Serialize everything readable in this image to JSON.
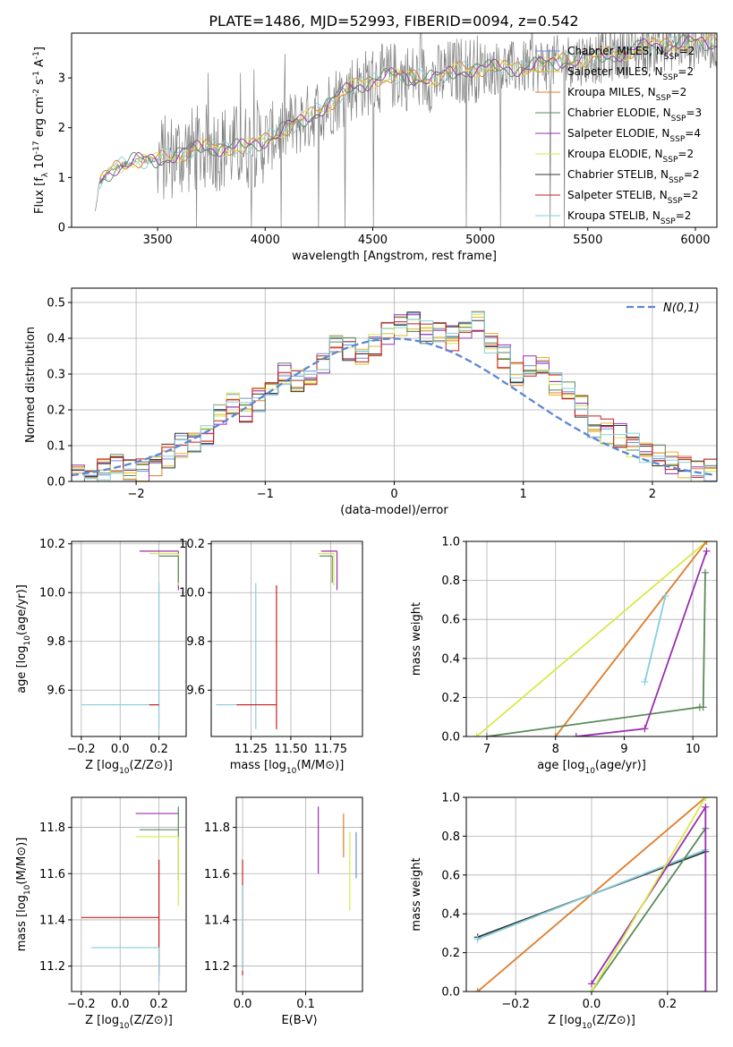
{
  "figure_title": "PLATE=1486, MJD=52993, FIBERID=0094, z=0.542",
  "colors": {
    "Chabrier MILES": "#6b8fdc",
    "Salpeter MILES": "#e0b52d",
    "Kroupa MILES": "#e07b2a",
    "Chabrier ELODIE": "#5a8a5a",
    "Salpeter ELODIE": "#9a2fb0",
    "Kroupa ELODIE": "#d9e84a",
    "Chabrier STELIB": "#333333",
    "Salpeter STELIB": "#c81e1e",
    "Kroupa STELIB": "#86cfdb",
    "gaussian": "#5b86d6",
    "grid": "#b0b0b0"
  },
  "chart_data": [
    {
      "id": "spectrum",
      "type": "line",
      "xlabel": "wavelength [Angstrom, rest frame]",
      "ylabel": "Flux [f_λ 10^-17 erg cm^-2 s^-1 A^-1]",
      "xlim": [
        3100,
        6100
      ],
      "ylim": [
        0,
        3.9
      ],
      "xticks": [
        3500,
        4000,
        4500,
        5000,
        5500,
        6000
      ],
      "yticks": [
        0,
        1,
        2,
        3
      ],
      "grid": false,
      "legend_position": "top-right",
      "legend": [
        {
          "label": "Chabrier MILES, N_SSP=2",
          "color_key": "Chabrier MILES"
        },
        {
          "label": "Salpeter MILES, N_SSP=2",
          "color_key": "Salpeter MILES"
        },
        {
          "label": "Kroupa MILES, N_SSP=2",
          "color_key": "Kroupa MILES"
        },
        {
          "label": "Chabrier ELODIE, N_SSP=3",
          "color_key": "Chabrier ELODIE"
        },
        {
          "label": "Salpeter ELODIE, N_SSP=4",
          "color_key": "Salpeter ELODIE"
        },
        {
          "label": "Kroupa ELODIE, N_SSP=2",
          "color_key": "Kroupa ELODIE"
        },
        {
          "label": "Chabrier STELIB, N_SSP=2",
          "color_key": "Chabrier STELIB"
        },
        {
          "label": "Salpeter STELIB, N_SSP=2",
          "color_key": "Salpeter STELIB"
        },
        {
          "label": "Kroupa STELIB, N_SSP=2",
          "color_key": "Kroupa STELIB"
        }
      ],
      "data_envelope": {
        "x": [
          3200,
          3230,
          3300,
          3400,
          3500,
          3700,
          3900,
          4000,
          4100,
          4200,
          4300,
          4400,
          4500,
          4600,
          4700,
          4800,
          4900,
          5000,
          5200,
          5400,
          5600,
          5800,
          6000
        ],
        "y": [
          0,
          0.9,
          1.2,
          1.35,
          1.35,
          1.6,
          1.6,
          1.75,
          2.0,
          2.2,
          2.5,
          2.8,
          2.95,
          3.05,
          3.0,
          3.0,
          3.15,
          3.2,
          3.2,
          3.35,
          3.45,
          3.65,
          3.7
        ]
      }
    },
    {
      "id": "residuals",
      "type": "step",
      "xlabel": "(data-model)/error",
      "ylabel": "Normed distribution",
      "xlim": [
        -2.5,
        2.5
      ],
      "ylim": [
        0,
        0.54
      ],
      "xticks": [
        -2,
        -1,
        0,
        1,
        2
      ],
      "yticks": [
        0.0,
        0.1,
        0.2,
        0.3,
        0.4,
        0.5
      ],
      "grid": true,
      "legend_position": "top-right",
      "legend": [
        {
          "label": "N(0,1)",
          "color_key": "gaussian",
          "style": "dashed"
        }
      ],
      "gaussian": {
        "mean": 0,
        "sigma": 1
      },
      "bin_width": 0.1,
      "bins_x": [
        -2.5,
        -2.4,
        -2.3,
        -2.2,
        -2.1,
        -2.0,
        -1.9,
        -1.8,
        -1.7,
        -1.6,
        -1.5,
        -1.4,
        -1.3,
        -1.2,
        -1.1,
        -1.0,
        -0.9,
        -0.8,
        -0.7,
        -0.6,
        -0.5,
        -0.4,
        -0.3,
        -0.2,
        -0.1,
        0.0,
        0.1,
        0.2,
        0.3,
        0.4,
        0.5,
        0.6,
        0.7,
        0.8,
        0.9,
        1.0,
        1.1,
        1.2,
        1.3,
        1.4,
        1.5,
        1.6,
        1.7,
        1.8,
        1.9,
        2.0,
        2.1,
        2.2,
        2.3,
        2.4
      ],
      "counts": [
        0.02,
        0.02,
        0.03,
        0.05,
        0.04,
        0.03,
        0.04,
        0.07,
        0.1,
        0.11,
        0.13,
        0.18,
        0.22,
        0.2,
        0.23,
        0.27,
        0.3,
        0.28,
        0.3,
        0.33,
        0.38,
        0.37,
        0.35,
        0.38,
        0.41,
        0.44,
        0.45,
        0.42,
        0.41,
        0.4,
        0.43,
        0.44,
        0.38,
        0.35,
        0.3,
        0.32,
        0.33,
        0.27,
        0.26,
        0.21,
        0.15,
        0.14,
        0.13,
        0.1,
        0.08,
        0.07,
        0.05,
        0.04,
        0.03,
        0.03
      ]
    },
    {
      "id": "z-vs-age",
      "type": "errorbar",
      "xlabel": "Z [log10(Z/Z⊙)]",
      "ylabel": "age [log10(age/yr)]",
      "xlim": [
        -0.25,
        0.34
      ],
      "ylim": [
        9.41,
        10.21
      ],
      "xticks": [
        -0.2,
        0.0,
        0.2
      ],
      "yticks": [
        9.6,
        9.8,
        10.0,
        10.2
      ],
      "grid": true,
      "points": [
        {
          "x": 0.2,
          "y": 9.54,
          "xerr": 0.4,
          "yerr_lo": 0.1,
          "yerr_hi": 0.5,
          "color_key": "Kroupa STELIB"
        },
        {
          "x": 0.2,
          "y": 9.54,
          "xerr": 0.05,
          "yerr_lo": 0.0,
          "yerr_hi": 0.0,
          "color_key": "Salpeter STELIB"
        },
        {
          "x": 0.3,
          "y": 10.17,
          "xerr": 0.2,
          "yerr_lo": 0.16,
          "yerr_hi": 0.0,
          "color_key": "Salpeter ELODIE"
        },
        {
          "x": 0.3,
          "y": 10.16,
          "xerr": 0.15,
          "yerr_lo": 0.13,
          "yerr_hi": 0.0,
          "color_key": "Kroupa ELODIE"
        },
        {
          "x": 0.3,
          "y": 10.15,
          "xerr": 0.1,
          "yerr_lo": 0.11,
          "yerr_hi": 0.0,
          "color_key": "Chabrier ELODIE"
        }
      ]
    },
    {
      "id": "mass-vs-age",
      "type": "errorbar",
      "xlabel": "mass [log10(M/M⊙)]",
      "ylabel": "",
      "xlim": [
        11.0,
        11.95
      ],
      "ylim": [
        9.41,
        10.21
      ],
      "xticks": [
        11.25,
        11.5,
        11.75
      ],
      "yticks": [
        9.6,
        9.8,
        10.0,
        10.2
      ],
      "grid": true,
      "points": [
        {
          "x": 11.28,
          "y": 9.54,
          "xerr": 0.25,
          "yerr_lo": 0.1,
          "yerr_hi": 0.5,
          "color_key": "Kroupa STELIB"
        },
        {
          "x": 11.41,
          "y": 9.54,
          "xerr": 0.25,
          "yerr_lo": 0.1,
          "yerr_hi": 0.49,
          "color_key": "Salpeter STELIB"
        },
        {
          "x": 11.79,
          "y": 10.17,
          "xerr": 0.1,
          "yerr_lo": 0.16,
          "yerr_hi": 0.0,
          "color_key": "Salpeter ELODIE"
        },
        {
          "x": 11.77,
          "y": 10.16,
          "xerr": 0.1,
          "yerr_lo": 0.13,
          "yerr_hi": 0.0,
          "color_key": "Kroupa ELODIE"
        },
        {
          "x": 11.76,
          "y": 10.15,
          "xerr": 0.08,
          "yerr_lo": 0.11,
          "yerr_hi": 0.0,
          "color_key": "Chabrier ELODIE"
        }
      ]
    },
    {
      "id": "age-vs-massweight",
      "type": "line",
      "xlabel": "age [log10(age/yr)]",
      "ylabel": "mass weight",
      "xlim": [
        6.7,
        10.35
      ],
      "ylim": [
        0,
        1.0
      ],
      "xticks": [
        7,
        8,
        9,
        10
      ],
      "yticks": [
        0.0,
        0.2,
        0.4,
        0.6,
        0.8,
        1.0
      ],
      "grid": true,
      "series": [
        {
          "x": [
            6.85,
            10.2
          ],
          "y": [
            0.0,
            1.0
          ],
          "color_key": "Kroupa ELODIE"
        },
        {
          "x": [
            8.0,
            10.2
          ],
          "y": [
            0.0,
            1.0
          ],
          "color_key": "Kroupa MILES"
        },
        {
          "x": [
            7.0,
            10.1,
            10.15,
            10.18
          ],
          "y": [
            0.0,
            0.15,
            0.15,
            0.84
          ],
          "color_key": "Chabrier ELODIE"
        },
        {
          "x": [
            8.3,
            9.3,
            10.2
          ],
          "y": [
            0.0,
            0.04,
            0.95
          ],
          "color_key": "Salpeter ELODIE"
        },
        {
          "x": [
            9.3,
            9.6
          ],
          "y": [
            0.28,
            0.72
          ],
          "color_key": "Kroupa STELIB"
        }
      ]
    },
    {
      "id": "z-vs-mass",
      "type": "errorbar",
      "xlabel": "Z [log10(Z/Z⊙)]",
      "ylabel": "mass [log10(M/M⊙)]",
      "xlim": [
        -0.25,
        0.34
      ],
      "ylim": [
        11.09,
        11.93
      ],
      "xticks": [
        -0.2,
        0.0,
        0.2
      ],
      "yticks": [
        11.2,
        11.4,
        11.6,
        11.8
      ],
      "grid": true,
      "points": [
        {
          "x": 0.2,
          "y": 11.41,
          "xerr": 0.4,
          "yerr_lo": 0.25,
          "yerr_hi": 0.25,
          "color_key": "Salpeter STELIB"
        },
        {
          "x": 0.2,
          "y": 11.28,
          "xerr": 0.35,
          "yerr_lo": 0.15,
          "yerr_hi": 0.0,
          "color_key": "Kroupa STELIB"
        },
        {
          "x": 0.3,
          "y": 11.86,
          "xerr": 0.22,
          "yerr_lo": 0.0,
          "yerr_hi": 0.0,
          "color_key": "Salpeter ELODIE"
        },
        {
          "x": 0.3,
          "y": 11.79,
          "xerr": 0.2,
          "yerr_lo": 0.22,
          "yerr_hi": 0.1,
          "color_key": "Chabrier ELODIE"
        },
        {
          "x": 0.3,
          "y": 11.76,
          "xerr": 0.22,
          "yerr_lo": 0.3,
          "yerr_hi": 0.0,
          "color_key": "Kroupa ELODIE"
        }
      ]
    },
    {
      "id": "ebv-vs-mass",
      "type": "errorbar",
      "xlabel": "E(B-V)",
      "ylabel": "",
      "xlim": [
        -0.01,
        0.19
      ],
      "ylim": [
        11.09,
        11.93
      ],
      "xticks": [
        0.0,
        0.1
      ],
      "yticks": [
        11.2,
        11.4,
        11.6,
        11.8
      ],
      "grid": true,
      "points": [
        {
          "x": 0.0,
          "y": 11.41,
          "yerr_lo": 0.25,
          "yerr_hi": 0.25,
          "color_key": "Salpeter STELIB"
        },
        {
          "x": 0.0,
          "y": 11.3,
          "yerr_lo": 0.12,
          "yerr_hi": 0.25,
          "color_key": "Kroupa STELIB"
        },
        {
          "x": 0.12,
          "y": 11.75,
          "yerr_lo": 0.15,
          "yerr_hi": 0.14,
          "color_key": "Salpeter ELODIE"
        },
        {
          "x": 0.16,
          "y": 11.78,
          "yerr_lo": 0.11,
          "yerr_hi": 0.08,
          "color_key": "Kroupa MILES"
        },
        {
          "x": 0.17,
          "y": 11.62,
          "yerr_lo": 0.18,
          "yerr_hi": 0.16,
          "color_key": "Kroupa ELODIE"
        },
        {
          "x": 0.18,
          "y": 11.7,
          "yerr_lo": 0.12,
          "yerr_hi": 0.08,
          "color_key": "Chabrier MILES"
        }
      ]
    },
    {
      "id": "z-vs-massweight",
      "type": "line",
      "xlabel": "Z [log10(Z/Z⊙)]",
      "ylabel": "mass weight",
      "xlim": [
        -0.33,
        0.33
      ],
      "ylim": [
        0,
        1.0
      ],
      "xticks": [
        -0.2,
        0.0,
        0.2
      ],
      "yticks": [
        0.0,
        0.2,
        0.4,
        0.6,
        0.8,
        1.0
      ],
      "grid": true,
      "series": [
        {
          "x": [
            -0.3,
            0.3
          ],
          "y": [
            0.0,
            1.0
          ],
          "color_key": "Kroupa MILES"
        },
        {
          "x": [
            -0.3,
            0.3
          ],
          "y": [
            0.28,
            0.72
          ],
          "color_key": "Chabrier STELIB"
        },
        {
          "x": [
            -0.3,
            0.3
          ],
          "y": [
            0.27,
            0.73
          ],
          "color_key": "Kroupa STELIB"
        },
        {
          "x": [
            0.0,
            0.3
          ],
          "y": [
            0.0,
            0.84
          ],
          "color_key": "Chabrier ELODIE"
        },
        {
          "x": [
            0.0,
            0.3,
            0.3
          ],
          "y": [
            0.04,
            0.95,
            0.0
          ],
          "color_key": "Salpeter ELODIE"
        },
        {
          "x": [
            0.0,
            0.3
          ],
          "y": [
            0.0,
            1.0
          ],
          "color_key": "Kroupa ELODIE"
        }
      ]
    }
  ]
}
